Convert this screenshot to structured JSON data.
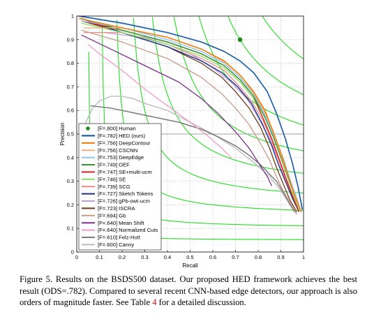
{
  "chart_data": {
    "type": "line",
    "xlabel": "Recall",
    "ylabel": "Precision",
    "xlim": [
      0,
      1
    ],
    "ylim": [
      0,
      1
    ],
    "xticks": [
      "0",
      "0.1",
      "0.2",
      "0.3",
      "0.4",
      "0.5",
      "0.6",
      "0.7",
      "0.8",
      "0.9",
      "1"
    ],
    "yticks": [
      "0",
      "0.1",
      "0.2",
      "0.3",
      "0.4",
      "0.5",
      "0.6",
      "0.7",
      "0.8",
      "0.9",
      "1"
    ],
    "grid": true,
    "legend_position": "lower-left",
    "iso_f_values": [
      0.1,
      0.2,
      0.3,
      0.4,
      0.5,
      0.6,
      0.7,
      0.8,
      0.9
    ],
    "iso_f_color": "#22dd22",
    "baseline": {
      "y": 0.5,
      "color": "#a0a0a0"
    },
    "human": {
      "name": "[F=.800] Human",
      "recall": 0.72,
      "precision": 0.9,
      "color": "#1a8a1a"
    },
    "series": [
      {
        "name": "[F=.782] HED (ours)",
        "color": "#1f5fa8",
        "width": 1.7,
        "points": [
          [
            0.01,
            1.0
          ],
          [
            0.2,
            0.97
          ],
          [
            0.4,
            0.93
          ],
          [
            0.55,
            0.89
          ],
          [
            0.65,
            0.85
          ],
          [
            0.72,
            0.81
          ],
          [
            0.78,
            0.76
          ],
          [
            0.84,
            0.68
          ],
          [
            0.88,
            0.59
          ],
          [
            0.92,
            0.48
          ],
          [
            0.95,
            0.38
          ],
          [
            0.975,
            0.28
          ],
          [
            0.995,
            0.18
          ]
        ]
      },
      {
        "name": "[F=.756] DeepContour",
        "color": "#ee7f14",
        "width": 1.6,
        "points": [
          [
            0.01,
            0.99
          ],
          [
            0.2,
            0.95
          ],
          [
            0.4,
            0.91
          ],
          [
            0.55,
            0.86
          ],
          [
            0.65,
            0.81
          ],
          [
            0.72,
            0.75
          ],
          [
            0.78,
            0.68
          ],
          [
            0.83,
            0.6
          ],
          [
            0.87,
            0.5
          ],
          [
            0.9,
            0.42
          ],
          [
            0.93,
            0.33
          ],
          [
            0.96,
            0.24
          ],
          [
            0.99,
            0.17
          ]
        ]
      },
      {
        "name": "[F=.756] CSCNN",
        "color": "#f2b27a",
        "width": 1.4,
        "points": [
          [
            0.03,
            0.95
          ],
          [
            0.2,
            0.95
          ],
          [
            0.4,
            0.91
          ],
          [
            0.55,
            0.86
          ],
          [
            0.66,
            0.8
          ],
          [
            0.73,
            0.74
          ],
          [
            0.79,
            0.66
          ],
          [
            0.84,
            0.57
          ],
          [
            0.88,
            0.47
          ],
          [
            0.91,
            0.38
          ],
          [
            0.94,
            0.3
          ],
          [
            0.97,
            0.22
          ],
          [
            0.99,
            0.17
          ]
        ]
      },
      {
        "name": "[F=.753] DeepEdge",
        "color": "#8fc4e8",
        "width": 1.4,
        "points": [
          [
            0.02,
            0.98
          ],
          [
            0.2,
            0.95
          ],
          [
            0.4,
            0.9
          ],
          [
            0.55,
            0.85
          ],
          [
            0.65,
            0.8
          ],
          [
            0.72,
            0.74
          ],
          [
            0.78,
            0.67
          ],
          [
            0.83,
            0.58
          ],
          [
            0.87,
            0.49
          ],
          [
            0.91,
            0.4
          ],
          [
            0.94,
            0.31
          ],
          [
            0.97,
            0.23
          ],
          [
            0.99,
            0.17
          ]
        ]
      },
      {
        "name": "[F=.749] OEF",
        "color": "#2e9a2e",
        "width": 1.4,
        "points": [
          [
            0.02,
            0.99
          ],
          [
            0.2,
            0.94
          ],
          [
            0.4,
            0.89
          ],
          [
            0.55,
            0.84
          ],
          [
            0.65,
            0.79
          ],
          [
            0.72,
            0.73
          ],
          [
            0.78,
            0.66
          ],
          [
            0.83,
            0.57
          ],
          [
            0.87,
            0.48
          ],
          [
            0.9,
            0.4
          ],
          [
            0.93,
            0.32
          ],
          [
            0.96,
            0.24
          ],
          [
            0.99,
            0.17
          ]
        ]
      },
      {
        "name": "[F=.747] SE+multi-ucm",
        "color": "#d62020",
        "width": 1.4,
        "points": [
          [
            0.02,
            0.98
          ],
          [
            0.2,
            0.94
          ],
          [
            0.4,
            0.89
          ],
          [
            0.55,
            0.84
          ],
          [
            0.65,
            0.79
          ],
          [
            0.72,
            0.73
          ],
          [
            0.78,
            0.66
          ],
          [
            0.82,
            0.57
          ],
          [
            0.86,
            0.48
          ],
          [
            0.89,
            0.4
          ],
          [
            0.92,
            0.32
          ],
          [
            0.95,
            0.24
          ],
          [
            0.98,
            0.17
          ]
        ]
      },
      {
        "name": "[F=.746] SE",
        "color": "#88dd66",
        "width": 1.3,
        "points": [
          [
            0.02,
            0.97
          ],
          [
            0.2,
            0.93
          ],
          [
            0.4,
            0.88
          ],
          [
            0.55,
            0.83
          ],
          [
            0.65,
            0.78
          ],
          [
            0.72,
            0.72
          ],
          [
            0.78,
            0.65
          ],
          [
            0.82,
            0.57
          ],
          [
            0.86,
            0.48
          ],
          [
            0.89,
            0.4
          ],
          [
            0.92,
            0.32
          ],
          [
            0.95,
            0.25
          ],
          [
            0.98,
            0.18
          ]
        ]
      },
      {
        "name": "[F=.739] SCG",
        "color": "#f08a8a",
        "width": 1.3,
        "points": [
          [
            0.03,
            0.93
          ],
          [
            0.2,
            0.93
          ],
          [
            0.4,
            0.88
          ],
          [
            0.55,
            0.82
          ],
          [
            0.65,
            0.77
          ],
          [
            0.71,
            0.71
          ],
          [
            0.77,
            0.64
          ],
          [
            0.82,
            0.56
          ],
          [
            0.86,
            0.47
          ],
          [
            0.89,
            0.39
          ],
          [
            0.92,
            0.31
          ],
          [
            0.95,
            0.24
          ],
          [
            0.98,
            0.17
          ]
        ]
      },
      {
        "name": "[F=.727] Sketch Tokens",
        "color": "#1f2f8c",
        "width": 1.4,
        "points": [
          [
            0.02,
            0.99
          ],
          [
            0.2,
            0.93
          ],
          [
            0.4,
            0.87
          ],
          [
            0.55,
            0.81
          ],
          [
            0.64,
            0.76
          ],
          [
            0.71,
            0.7
          ],
          [
            0.77,
            0.63
          ],
          [
            0.82,
            0.54
          ],
          [
            0.86,
            0.45
          ],
          [
            0.89,
            0.37
          ],
          [
            0.92,
            0.3
          ],
          [
            0.95,
            0.23
          ],
          [
            0.98,
            0.17
          ]
        ]
      },
      {
        "name": "[F=.726] gPb-owt-ucm",
        "color": "#c2a0e0",
        "width": 1.3,
        "points": [
          [
            0.12,
            0.93
          ],
          [
            0.2,
            0.92
          ],
          [
            0.3,
            0.91
          ],
          [
            0.4,
            0.88
          ],
          [
            0.5,
            0.84
          ],
          [
            0.6,
            0.78
          ],
          [
            0.68,
            0.72
          ],
          [
            0.75,
            0.65
          ],
          [
            0.8,
            0.57
          ],
          [
            0.85,
            0.48
          ],
          [
            0.89,
            0.39
          ],
          [
            0.92,
            0.31
          ],
          [
            0.95,
            0.24
          ],
          [
            0.98,
            0.17
          ]
        ]
      },
      {
        "name": "[F=.723] ISCRA",
        "color": "#6b3a1a",
        "width": 1.3,
        "points": [
          [
            0.02,
            0.98
          ],
          [
            0.2,
            0.93
          ],
          [
            0.4,
            0.87
          ],
          [
            0.55,
            0.8
          ],
          [
            0.64,
            0.74
          ],
          [
            0.7,
            0.68
          ],
          [
            0.76,
            0.61
          ],
          [
            0.81,
            0.53
          ],
          [
            0.85,
            0.44
          ],
          [
            0.88,
            0.36
          ],
          [
            0.91,
            0.29
          ],
          [
            0.94,
            0.22
          ],
          [
            0.97,
            0.17
          ]
        ]
      },
      {
        "name": "[F=.694] Gb",
        "color": "#c89a8a",
        "width": 1.3,
        "points": [
          [
            0.02,
            0.94
          ],
          [
            0.2,
            0.89
          ],
          [
            0.4,
            0.82
          ],
          [
            0.55,
            0.74
          ],
          [
            0.64,
            0.67
          ],
          [
            0.7,
            0.61
          ],
          [
            0.76,
            0.54
          ],
          [
            0.81,
            0.46
          ],
          [
            0.85,
            0.39
          ],
          [
            0.88,
            0.32
          ],
          [
            0.91,
            0.26
          ],
          [
            0.94,
            0.21
          ],
          [
            0.97,
            0.16
          ]
        ]
      },
      {
        "name": "[F=.640] Mean Shift",
        "color": "#7a2f8c",
        "width": 1.3,
        "points": [
          [
            0.02,
            0.92
          ],
          [
            0.15,
            0.86
          ],
          [
            0.3,
            0.79
          ],
          [
            0.45,
            0.72
          ],
          [
            0.55,
            0.65
          ],
          [
            0.62,
            0.59
          ],
          [
            0.7,
            0.51
          ],
          [
            0.76,
            0.44
          ],
          [
            0.8,
            0.38
          ],
          [
            0.84,
            0.32
          ],
          [
            0.86,
            0.28
          ]
        ]
      },
      {
        "name": "[F=.640] Normalized Cuts",
        "color": "#f29ac8",
        "width": 1.3,
        "points": [
          [
            0.05,
            0.88
          ],
          [
            0.1,
            0.84
          ],
          [
            0.2,
            0.77
          ],
          [
            0.3,
            0.69
          ],
          [
            0.4,
            0.62
          ],
          [
            0.5,
            0.55
          ],
          [
            0.58,
            0.49
          ],
          [
            0.64,
            0.44
          ],
          [
            0.68,
            0.4
          ]
        ]
      },
      {
        "name": "[F=.610] Felz-Hutt",
        "color": "#7a7a7a",
        "width": 1.5,
        "points": [
          [
            0.06,
            0.62
          ],
          [
            0.15,
            0.61
          ],
          [
            0.25,
            0.59
          ],
          [
            0.35,
            0.57
          ],
          [
            0.45,
            0.55
          ],
          [
            0.55,
            0.52
          ],
          [
            0.62,
            0.49
          ],
          [
            0.7,
            0.45
          ],
          [
            0.76,
            0.41
          ],
          [
            0.81,
            0.37
          ],
          [
            0.85,
            0.33
          ],
          [
            0.88,
            0.3
          ],
          [
            0.9,
            0.27
          ],
          [
            0.93,
            0.22
          ],
          [
            0.96,
            0.17
          ]
        ]
      },
      {
        "name": "[F=.600] Canny",
        "color": "#bdbdbd",
        "width": 1.4,
        "points": [
          [
            0.02,
            0.35
          ],
          [
            0.04,
            0.55
          ],
          [
            0.07,
            0.61
          ],
          [
            0.1,
            0.64
          ],
          [
            0.15,
            0.66
          ],
          [
            0.2,
            0.66
          ],
          [
            0.25,
            0.65
          ],
          [
            0.3,
            0.63
          ],
          [
            0.4,
            0.6
          ],
          [
            0.5,
            0.55
          ],
          [
            0.6,
            0.5
          ],
          [
            0.7,
            0.44
          ],
          [
            0.78,
            0.38
          ],
          [
            0.85,
            0.32
          ],
          [
            0.9,
            0.26
          ],
          [
            0.94,
            0.2
          ],
          [
            0.97,
            0.16
          ]
        ]
      }
    ]
  },
  "caption": {
    "label": "Figure 5.",
    "text_before_ref": " Results on the BSDS500 dataset. Our proposed HED framework achieves the best result (ODS=.782). Compared to several recent CNN-based edge detectors, our approach is also orders of magnitude faster. See Table ",
    "ref": "4",
    "text_after_ref": " for a detailed discussion."
  }
}
